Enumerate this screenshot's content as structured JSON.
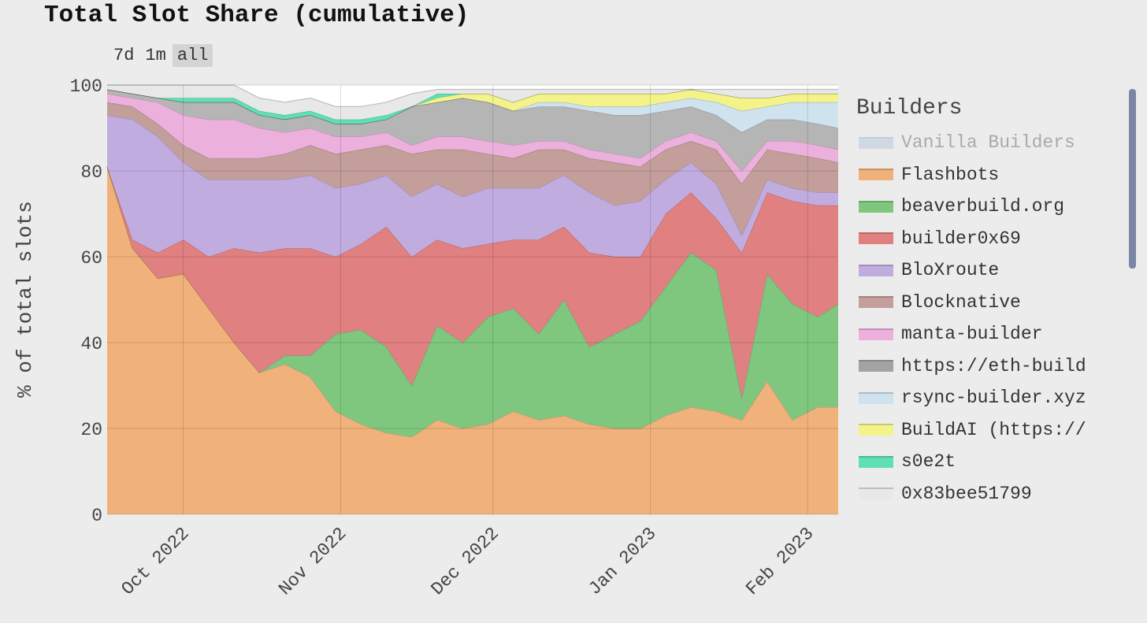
{
  "title": "Total Slot Share (cumulative)",
  "range_buttons": [
    "7d",
    "1m",
    "all"
  ],
  "active_range": "all",
  "legend_title": "Builders",
  "chart_data": {
    "type": "area",
    "stacked": true,
    "title": "Total Slot Share (cumulative)",
    "ylabel": "% of total slots",
    "xlabel": "",
    "ylim": [
      0,
      100
    ],
    "y_ticks": [
      "0",
      "20",
      "40",
      "60",
      "80",
      "100"
    ],
    "x_ticks": [
      "Oct 2022",
      "Nov 2022",
      "Dec 2022",
      "Jan 2023",
      "Feb 2023"
    ],
    "x_range": [
      "2022-09-16",
      "2023-02-07"
    ],
    "grid": true,
    "legend_position": "right",
    "x": [
      "2022-09-16",
      "2022-09-21",
      "2022-09-26",
      "2022-10-01",
      "2022-10-06",
      "2022-10-11",
      "2022-10-16",
      "2022-10-21",
      "2022-10-26",
      "2022-10-31",
      "2022-11-05",
      "2022-11-10",
      "2022-11-15",
      "2022-11-20",
      "2022-11-25",
      "2022-11-30",
      "2022-12-05",
      "2022-12-10",
      "2022-12-15",
      "2022-12-20",
      "2022-12-25",
      "2022-12-30",
      "2023-01-04",
      "2023-01-09",
      "2023-01-14",
      "2023-01-19",
      "2023-01-24",
      "2023-01-29",
      "2023-02-03",
      "2023-02-07"
    ],
    "series": [
      {
        "name": "Flashbots",
        "color": "#f0b27a",
        "values": [
          81,
          62,
          55,
          56,
          48,
          40,
          33,
          35,
          32,
          24,
          21,
          19,
          18,
          22,
          20,
          21,
          24,
          22,
          23,
          21,
          20,
          20,
          23,
          25,
          24,
          22,
          31,
          22,
          25,
          25
        ]
      },
      {
        "name": "beaverbuild.org",
        "color": "#7fc77f",
        "values": [
          0,
          0,
          0,
          0,
          0,
          0,
          0,
          2,
          5,
          18,
          22,
          20,
          12,
          22,
          20,
          25,
          24,
          20,
          27,
          18,
          22,
          25,
          30,
          36,
          33,
          5,
          25,
          27,
          21,
          24
        ]
      },
      {
        "name": "builder0x69",
        "color": "#e08080",
        "values": [
          0,
          2,
          6,
          8,
          12,
          22,
          28,
          25,
          25,
          18,
          20,
          28,
          30,
          20,
          22,
          17,
          16,
          22,
          17,
          22,
          18,
          15,
          17,
          14,
          12,
          34,
          19,
          24,
          26,
          23
        ]
      },
      {
        "name": "BloXroute",
        "color": "#c1ace0",
        "values": [
          12,
          28,
          27,
          18,
          18,
          16,
          17,
          16,
          17,
          16,
          14,
          12,
          14,
          13,
          12,
          13,
          12,
          12,
          12,
          14,
          12,
          13,
          8,
          7,
          8,
          4,
          3,
          3,
          3,
          3
        ]
      },
      {
        "name": "Blocknative",
        "color": "#c39e9a",
        "values": [
          3,
          3,
          3,
          4,
          5,
          5,
          5,
          6,
          7,
          8,
          8,
          7,
          10,
          8,
          11,
          8,
          7,
          9,
          6,
          8,
          10,
          8,
          7,
          5,
          8,
          12,
          7,
          8,
          8,
          7
        ]
      },
      {
        "name": "manta-builder",
        "color": "#ecb0dd",
        "values": [
          2,
          2,
          5,
          7,
          9,
          9,
          7,
          5,
          4,
          4,
          3,
          3,
          2,
          3,
          3,
          3,
          3,
          2,
          2,
          2,
          2,
          2,
          2,
          2,
          2,
          3,
          2,
          3,
          3,
          3
        ]
      },
      {
        "name": "https://eth-build",
        "color": "#b5b5b5",
        "values": [
          1,
          1,
          1,
          3,
          4,
          4,
          3,
          3,
          3,
          3,
          3,
          3,
          9,
          8,
          9,
          9,
          8,
          8,
          8,
          9,
          9,
          10,
          7,
          6,
          6,
          9,
          5,
          5,
          5,
          5
        ]
      },
      {
        "name": "rsync-builder.xyz",
        "color": "#cfe3ee",
        "values": [
          0,
          0,
          0,
          0,
          0,
          0,
          0,
          0,
          0,
          0,
          0,
          0,
          0,
          0,
          0,
          0,
          0,
          1,
          1,
          1,
          2,
          2,
          2,
          2,
          3,
          5,
          3,
          4,
          5,
          6
        ]
      },
      {
        "name": "BuildAI (https://",
        "color": "#f3f38a",
        "values": [
          0,
          0,
          0,
          0,
          0,
          0,
          0,
          0,
          0,
          0,
          0,
          0,
          0,
          1,
          1,
          2,
          2,
          2,
          2,
          3,
          3,
          3,
          2,
          2,
          2,
          3,
          2,
          2,
          2,
          2
        ]
      },
      {
        "name": "s0e2t",
        "color": "#5fe0b2",
        "values": [
          0,
          0,
          0,
          1,
          1,
          1,
          1,
          1,
          1,
          1,
          1,
          1,
          0,
          1,
          0,
          0,
          0,
          0,
          0,
          0,
          0,
          0,
          0,
          0,
          0,
          0,
          0,
          0,
          0,
          0
        ]
      },
      {
        "name": "0x83bee51799",
        "color": "#e8e8e8",
        "values": [
          1,
          2,
          3,
          3,
          3,
          3,
          3,
          3,
          3,
          3,
          3,
          3,
          3,
          1,
          1,
          1,
          3,
          1,
          1,
          1,
          1,
          1,
          1,
          0,
          1,
          2,
          2,
          1,
          1,
          1
        ]
      },
      {
        "name": "Vanilla Builders",
        "color": "#9cb7d8",
        "hidden": true,
        "values": [
          0,
          0,
          0,
          0,
          0,
          0,
          0,
          0,
          0,
          0,
          0,
          0,
          0,
          0,
          0,
          0,
          0,
          0,
          0,
          0,
          0,
          0,
          0,
          0,
          0,
          0,
          0,
          0,
          0,
          0
        ]
      }
    ]
  },
  "legend_items": [
    {
      "label": "Vanilla Builders",
      "color": "#9cb7d8",
      "dim": true
    },
    {
      "label": "Flashbots",
      "color": "#f0b27a",
      "dim": false
    },
    {
      "label": "beaverbuild.org",
      "color": "#7fc77f",
      "dim": false
    },
    {
      "label": "builder0x69",
      "color": "#e08080",
      "dim": false
    },
    {
      "label": "BloXroute",
      "color": "#c1ace0",
      "dim": false
    },
    {
      "label": "Blocknative",
      "color": "#c39e9a",
      "dim": false
    },
    {
      "label": "manta-builder",
      "color": "#ecb0dd",
      "dim": false
    },
    {
      "label": "https://eth-build",
      "color": "#a3a3a3",
      "dim": false
    },
    {
      "label": "rsync-builder.xyz",
      "color": "#cfe3ee",
      "dim": false
    },
    {
      "label": "BuildAI (https://",
      "color": "#f3f38a",
      "dim": false
    },
    {
      "label": "s0e2t",
      "color": "#5fe0b2",
      "dim": false
    },
    {
      "label": "0x83bee51799",
      "color": "#e8e8e8",
      "dim": false
    }
  ]
}
